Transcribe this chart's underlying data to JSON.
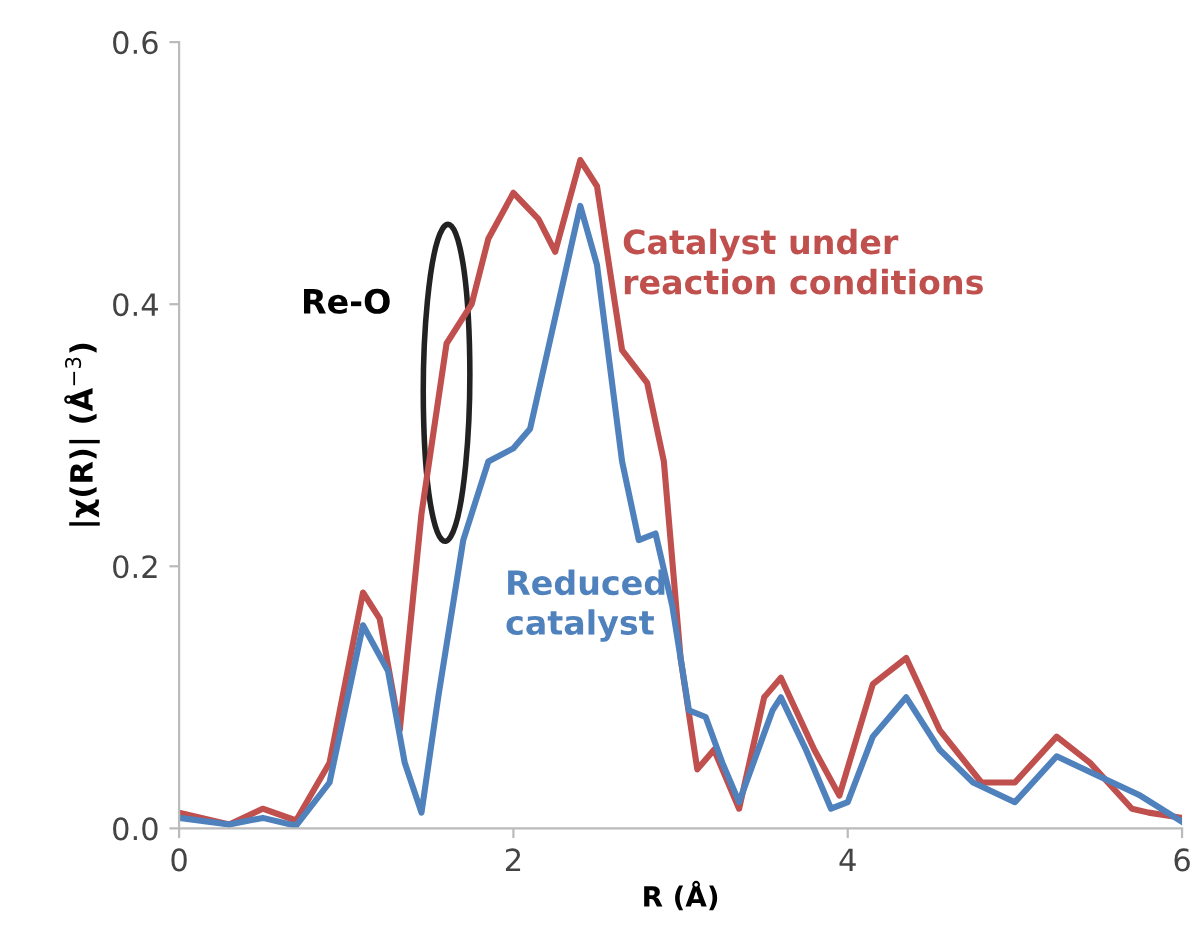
{
  "chart_data": {
    "type": "line",
    "xlabel": "R (Å)",
    "ylabel": "|χ(R)| (Å$^{−3}$)",
    "xlim": [
      0,
      6
    ],
    "xticks": [
      0,
      2,
      4,
      6
    ],
    "ylim": [
      0,
      0.6
    ],
    "yticks": [
      {
        "value": 0,
        "label": "0.0"
      },
      0.2,
      0.4,
      0.6
    ],
    "grid": false,
    "legend": false,
    "marker": "none",
    "line_style": "solid",
    "annotations": [
      {
        "text": "Re-O",
        "x": 1.6,
        "y": 0.34
      }
    ],
    "series": [
      {
        "name": "Catalyst under\nreaction conditions",
        "color": "#c0504d",
        "x": [
          0,
          0.3,
          0.5,
          0.7,
          0.9,
          1.1,
          1.2,
          1.32,
          1.45,
          1.6,
          1.75,
          1.85,
          2.0,
          2.15,
          2.25,
          2.4,
          2.5,
          2.65,
          2.8,
          2.9,
          3.0,
          3.1,
          3.2,
          3.35,
          3.5,
          3.6,
          3.8,
          3.95,
          4.15,
          4.35,
          4.55,
          4.8,
          5.0,
          5.25,
          5.45,
          5.7,
          5.8,
          6.0
        ],
        "values": [
          0.012,
          0.003,
          0.015,
          0.006,
          0.05,
          0.18,
          0.16,
          0.075,
          0.24,
          0.37,
          0.4,
          0.45,
          0.485,
          0.465,
          0.44,
          0.51,
          0.49,
          0.365,
          0.34,
          0.28,
          0.13,
          0.045,
          0.06,
          0.015,
          0.1,
          0.115,
          0.06,
          0.025,
          0.11,
          0.13,
          0.075,
          0.035,
          0.035,
          0.07,
          0.05,
          0.015,
          0.012,
          0.008
        ]
      },
      {
        "name": "Reduced\ncatalyst",
        "color": "#4f81bd",
        "x": [
          0,
          0.3,
          0.5,
          0.7,
          0.9,
          1.1,
          1.25,
          1.35,
          1.45,
          1.55,
          1.7,
          1.85,
          2.0,
          2.1,
          2.25,
          2.4,
          2.5,
          2.65,
          2.75,
          2.85,
          2.95,
          3.05,
          3.15,
          3.25,
          3.35,
          3.55,
          3.6,
          3.75,
          3.9,
          4.0,
          4.15,
          4.35,
          4.55,
          4.75,
          5.0,
          5.25,
          5.5,
          5.75,
          6.0
        ],
        "values": [
          0.008,
          0.003,
          0.008,
          0.002,
          0.035,
          0.155,
          0.12,
          0.05,
          0.012,
          0.1,
          0.22,
          0.28,
          0.29,
          0.305,
          0.39,
          0.475,
          0.43,
          0.28,
          0.22,
          0.225,
          0.17,
          0.09,
          0.085,
          0.05,
          0.02,
          0.09,
          0.1,
          0.06,
          0.015,
          0.02,
          0.07,
          0.1,
          0.06,
          0.035,
          0.02,
          0.055,
          0.04,
          0.025,
          0.005
        ]
      }
    ]
  }
}
